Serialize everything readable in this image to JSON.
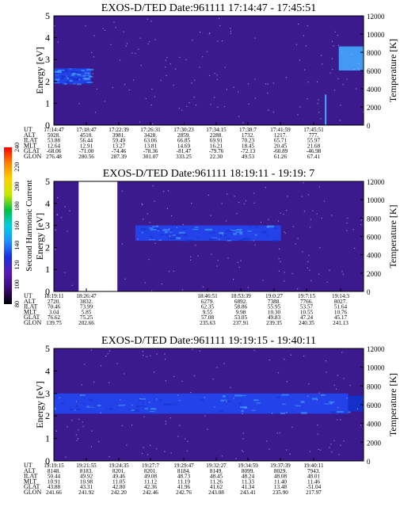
{
  "colors": {
    "spectrogram_bg": "#3a1a8c",
    "band": "#2244ee",
    "band_light": "#44a8ff",
    "dots": "#d9a8ff",
    "gap": "#ffffff"
  },
  "colorbar": {
    "label": "Second Harmonic Current",
    "ticks": [
      "80",
      "100",
      "120",
      "140",
      "160",
      "180",
      "200",
      "220",
      "240"
    ],
    "stops": [
      "#000000",
      "#3a0a7a",
      "#5a1ab8",
      "#1a2ee0",
      "#1e90ff",
      "#00d0e0",
      "#00c040",
      "#c8e800",
      "#ffd000",
      "#ff8000",
      "#ff0000"
    ]
  },
  "chart_data": [
    {
      "type": "heatmap",
      "title": "EXOS-D/TED  Date:961111  17:14:47 - 17:45:51",
      "ylabel": "Energy [eV]",
      "ylabel_right": "Temperature [K]",
      "ylim": [
        0,
        5
      ],
      "yticks": [
        "0",
        "1",
        "2",
        "3",
        "4",
        "5"
      ],
      "ylim_right": [
        0,
        12000
      ],
      "yticks_right": [
        "0",
        "2000",
        "4000",
        "6000",
        "8000",
        "10000",
        "12000"
      ],
      "row_labels": [
        "UT",
        "ALT",
        "ILAT",
        "MLT",
        "GLAT",
        "GLON"
      ],
      "columns": [
        [
          "17:14:47",
          "5028.",
          "53.88",
          "12.64",
          "-68.06",
          "276.48"
        ],
        [
          "17:18:47",
          "4510.",
          "56.44",
          "12.91",
          "-71.00",
          "280.56"
        ],
        [
          "17:22:39",
          "3981.",
          "59.49",
          "13.27",
          "-74.46",
          "287.39"
        ],
        [
          "17:26:31",
          "3428.",
          "63.06",
          "13.81",
          "-78.36",
          "301.07"
        ],
        [
          "17:30:23",
          "2859.",
          "66.85",
          "14.69",
          "-81.47",
          "333.25"
        ],
        [
          "17:34:15",
          "2288.",
          "69.91",
          "16.21",
          "-79.76",
          "22.30"
        ],
        [
          "17:38:7",
          "1732.",
          "70.23",
          "18.45",
          "-72.13",
          "49.53"
        ],
        [
          "17:41:59",
          "1217.",
          "65.71",
          "20.45",
          "-60.89",
          "61.26"
        ],
        [
          "17:45:51",
          "777.",
          "55.97",
          "21.68",
          "-46.98",
          "67.41"
        ]
      ]
    },
    {
      "type": "heatmap",
      "title": "EXOS-D/TED   Date:961111  18:19:11 - 19:19: 7",
      "ylabel": "Energy [eV]",
      "ylabel_right": "Temperature [K]",
      "ylim": [
        0,
        5
      ],
      "yticks": [
        "0",
        "1",
        "2",
        "3",
        "4",
        "5"
      ],
      "ylim_right": [
        0,
        12000
      ],
      "yticks_right": [
        "0",
        "2000",
        "4000",
        "6000",
        "8000",
        "10000",
        "12000"
      ],
      "row_labels": [
        "UT",
        "ALT",
        "ILAT",
        "MLT",
        "GLAT",
        "GLON"
      ],
      "columns": [
        [
          "18:19:11",
          "2720.",
          "70.46",
          "3.04",
          "76.62",
          "139.75"
        ],
        [
          "18:26:47",
          "3832.",
          "73.99",
          "5.85",
          "75.25",
          "202.66"
        ],
        [
          "18:46:51",
          "6279.",
          "62.35",
          "9.55",
          "57.08",
          "235.63"
        ],
        [
          "18:53:39",
          "6892.",
          "58.86",
          "9.98",
          "53.05",
          "237.91"
        ],
        [
          "19:0:27",
          "7388.",
          "55.95",
          "10.30",
          "49.83",
          "239.35"
        ],
        [
          "19:7:15",
          "7766.",
          "53.57",
          "10.55",
          "47.24",
          "240.35"
        ],
        [
          "19:14:3",
          "8027.",
          "51.64",
          "10.76",
          "45.17",
          "241.13"
        ]
      ]
    },
    {
      "type": "heatmap",
      "title": "EXOS-D/TED  Date:961111  19:19:15 - 19:40:11",
      "ylabel": "Energy [eV]",
      "ylabel_right": "Temperature [K]",
      "ylim": [
        0,
        5
      ],
      "yticks": [
        "0",
        "1",
        "2",
        "3",
        "4",
        "5"
      ],
      "ylim_right": [
        0,
        12000
      ],
      "yticks_right": [
        "0",
        "2000",
        "4000",
        "6000",
        "8000",
        "10000",
        "12000"
      ],
      "row_labels": [
        "UT",
        "ALT",
        "ILAT",
        "MLT",
        "GLAT",
        "GLON"
      ],
      "columns": [
        [
          "19:19:15",
          "8148.",
          "50.44",
          "10.91",
          "43.88",
          "241.66"
        ],
        [
          "19:21:55",
          "8183.",
          "49.92",
          "10.98",
          "43.31",
          "241.92"
        ],
        [
          "19:24:35",
          "8201.",
          "49.46",
          "11.05",
          "42.80",
          "242.20"
        ],
        [
          "19:27:7",
          "8201.",
          "49.08",
          "11.12",
          "42.36",
          "242.46"
        ],
        [
          "19:29:47",
          "8184.",
          "48.73",
          "11.19",
          "41.96",
          "242.76"
        ],
        [
          "19:32:27",
          "8149.",
          "48.45",
          "11.26",
          "41.62",
          "243.08"
        ],
        [
          "19:34:59",
          "8099.",
          "48.24",
          "11.33",
          "41.34",
          "243.41"
        ],
        [
          "19:37:39",
          "8029.",
          "48.08",
          "11.40",
          "13.48",
          "235.90"
        ],
        [
          "19:40:11",
          "7943.",
          "48.01",
          "11.46",
          "-51.04",
          "217.97"
        ]
      ]
    }
  ]
}
